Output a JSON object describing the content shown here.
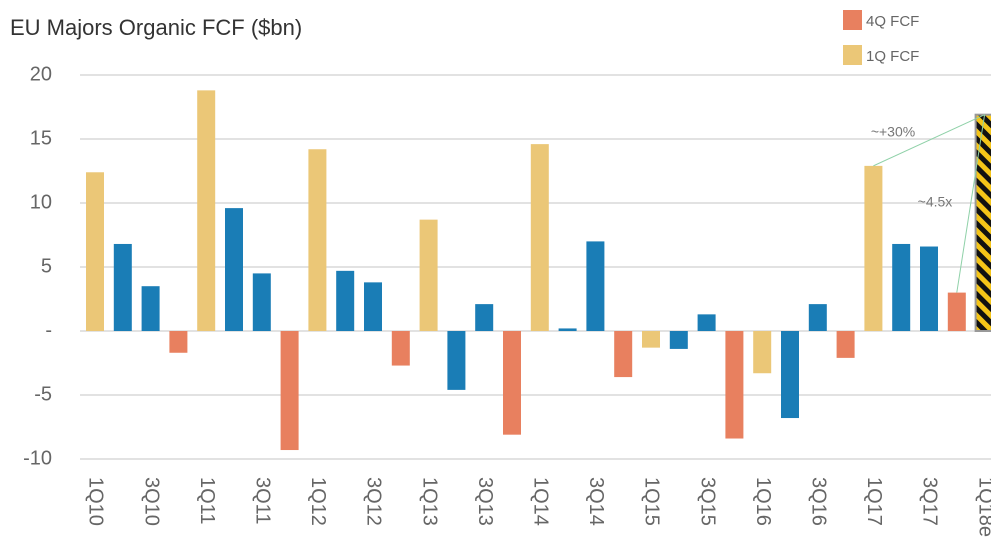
{
  "chart_data": {
    "type": "bar",
    "title": "EU Majors Organic FCF ($bn)",
    "categories": [
      "1Q10",
      null,
      "3Q10",
      null,
      "1Q11",
      null,
      "3Q11",
      null,
      "1Q12",
      null,
      "3Q12",
      null,
      "1Q13",
      null,
      "3Q13",
      null,
      "1Q14",
      null,
      "3Q14",
      null,
      "1Q15",
      null,
      "3Q15",
      null,
      "1Q16",
      null,
      "3Q16",
      null,
      "1Q17",
      null,
      "3Q17",
      null,
      "1Q18e"
    ],
    "values": [
      12.4,
      6.8,
      3.5,
      -1.7,
      18.8,
      9.6,
      4.5,
      -9.3,
      14.2,
      4.7,
      3.8,
      -2.7,
      8.7,
      -4.6,
      2.1,
      -8.1,
      14.6,
      0.2,
      7.0,
      -3.6,
      -1.3,
      -1.4,
      1.3,
      -8.4,
      -3.3,
      -6.8,
      2.1,
      -2.1,
      12.9,
      6.8,
      6.6,
      3.0,
      16.9
    ],
    "colors": [
      "#ebc777",
      "#1a7db6",
      "#1a7db6",
      "#e8805f",
      "#ebc777",
      "#1a7db6",
      "#1a7db6",
      "#e8805f",
      "#ebc777",
      "#1a7db6",
      "#1a7db6",
      "#e8805f",
      "#ebc777",
      "#1a7db6",
      "#1a7db6",
      "#e8805f",
      "#ebc777",
      "#1a7db6",
      "#1a7db6",
      "#e8805f",
      "#ebc777",
      "#1a7db6",
      "#1a7db6",
      "#e8805f",
      "#ebc777",
      "#1a7db6",
      "#1a7db6",
      "#e8805f",
      "#ebc777",
      "#1a7db6",
      "#1a7db6",
      "#e8805f",
      "hatch"
    ],
    "legend": [
      {
        "name": "4Q FCF",
        "color": "#e8805f"
      },
      {
        "name": "1Q FCF",
        "color": "#ebc777"
      }
    ],
    "annotations": [
      "~+30%",
      "~4.5x"
    ],
    "ylim": [
      -10,
      20
    ],
    "yticks": [
      -10,
      -5,
      {
        "value": 0,
        "label": "-"
      },
      5,
      10,
      15,
      20
    ],
    "grid": true
  }
}
